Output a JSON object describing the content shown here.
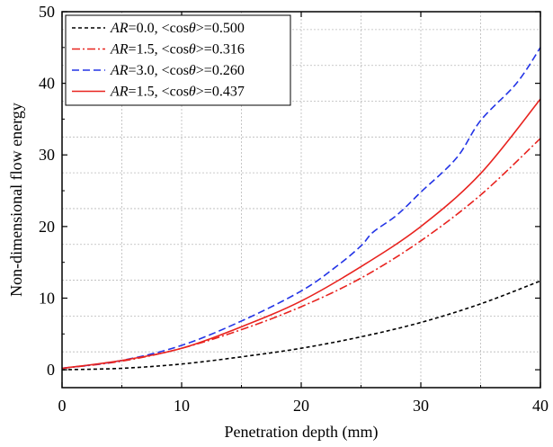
{
  "chart_data": {
    "type": "line",
    "title": "",
    "xlabel": "Penetration depth (mm)",
    "ylabel": "Non-dimensional flow energy",
    "xlim": [
      0,
      40
    ],
    "ylim": [
      -2.5,
      50
    ],
    "x_ticks": [
      0,
      10,
      20,
      30,
      40
    ],
    "y_ticks": [
      0,
      10,
      20,
      30,
      40,
      50
    ],
    "grid": true,
    "legend_position": "top-left",
    "series": [
      {
        "name": "AR=0.0, <cosθ>=0.500",
        "label_italic": "AR",
        "label_mid": "=0.0, <cos",
        "label_theta": "θ",
        "label_end": ">=0.500",
        "color": "#000000",
        "dash": "4,3",
        "x": [
          0,
          5,
          10,
          15,
          20,
          25,
          30,
          35,
          40
        ],
        "y": [
          0,
          0.2,
          0.8,
          1.8,
          3.0,
          4.6,
          6.6,
          9.2,
          12.4
        ]
      },
      {
        "name": "AR=1.5, <cosθ>=0.316",
        "label_italic": "AR",
        "label_mid": "=1.5, <cos",
        "label_theta": "θ",
        "label_end": ">=0.316",
        "color": "#e8231f",
        "dash": "9,3,2,3",
        "x": [
          0,
          5,
          10,
          15,
          20,
          25,
          30,
          35,
          40
        ],
        "y": [
          0.2,
          1.2,
          3.0,
          5.6,
          8.8,
          12.8,
          18.0,
          24.4,
          32.3
        ]
      },
      {
        "name": "AR=3.0, <cosθ>=0.260",
        "label_italic": "AR",
        "label_mid": "=3.0, <cos",
        "label_theta": "θ",
        "label_end": ">=0.260",
        "color": "#2334e6",
        "dash": "8,4",
        "x": [
          0,
          5,
          10,
          15,
          20,
          23,
          25,
          26,
          28,
          30,
          33,
          35,
          38,
          40
        ],
        "y": [
          0.2,
          1.3,
          3.4,
          6.8,
          11.0,
          14.5,
          17.3,
          19.2,
          21.6,
          24.8,
          29.6,
          34.8,
          40.0,
          45.0
        ]
      },
      {
        "name": "AR=1.5, <cosθ>=0.437",
        "label_italic": "AR",
        "label_mid": "=1.5, <cos",
        "label_theta": "θ",
        "label_end": ">=0.437",
        "color": "#e8231f",
        "dash": "",
        "x": [
          0,
          5,
          10,
          15,
          20,
          25,
          30,
          35,
          40
        ],
        "y": [
          0.2,
          1.3,
          3.0,
          6.0,
          9.6,
          14.4,
          20.0,
          27.4,
          37.8
        ]
      }
    ]
  }
}
